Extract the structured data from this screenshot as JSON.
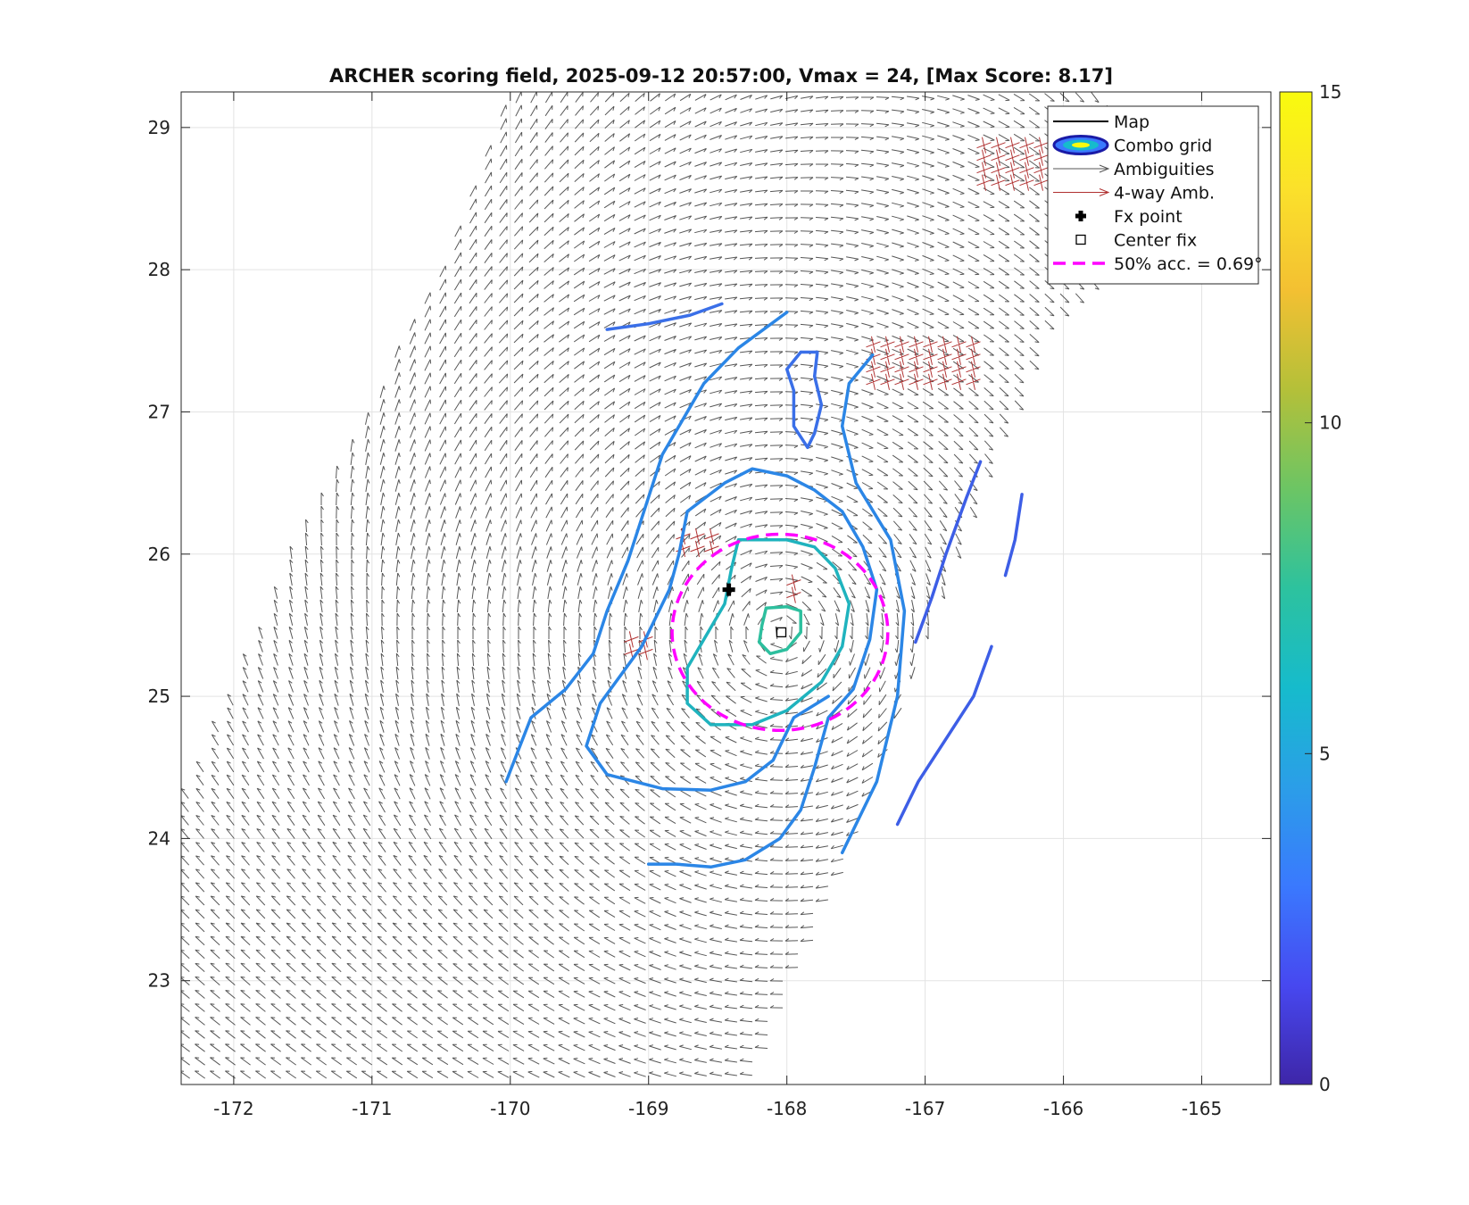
{
  "chart_data": {
    "type": "contour",
    "title": "ARCHER scoring field, 2025-09-12 20:57:00, Vmax = 24, [Max Score: 8.17]",
    "xlabel": "",
    "ylabel": "",
    "xlim": [
      -172.38,
      -164.5
    ],
    "ylim": [
      22.27,
      29.25
    ],
    "xticks": [
      -172,
      -171,
      -170,
      -169,
      -168,
      -167,
      -166,
      -165
    ],
    "yticks": [
      23,
      24,
      25,
      26,
      27,
      28,
      29
    ],
    "grid": true,
    "legend": {
      "placement": "top-right",
      "entries": [
        {
          "label": "Map",
          "style": "line",
          "color": "#000000"
        },
        {
          "label": "Combo grid",
          "style": "ellipse",
          "color": "#1a1aa6"
        },
        {
          "label": "Ambiguities",
          "style": "arrow",
          "color": "#555555"
        },
        {
          "label": "4-way Amb.",
          "style": "arrow",
          "color": "#b03030"
        },
        {
          "label": "Fx point",
          "style": "plus",
          "color": "#000000"
        },
        {
          "label": "Center fix",
          "style": "square",
          "color": "#000000"
        },
        {
          "label": "50% acc. = 0.69°",
          "style": "dashed",
          "color": "#ff00ff"
        }
      ]
    },
    "colorbar": {
      "min": 0,
      "max": 15,
      "ticks": [
        0,
        5,
        10,
        15
      ],
      "colormap": [
        "#3e26a8",
        "#4748f0",
        "#3a79fe",
        "#2b9ee8",
        "#16bbcc",
        "#2dc29e",
        "#6cc564",
        "#b4c039",
        "#f3c032",
        "#fbe02b",
        "#f9fb0e"
      ]
    },
    "fx_point": {
      "x": -168.42,
      "y": 25.75
    },
    "center_fix": {
      "x": -168.04,
      "y": 25.45
    },
    "accuracy_circle": {
      "cx": -168.05,
      "cy": 25.45,
      "rx": 0.78,
      "ry": 0.69,
      "color": "#ff00ff"
    },
    "swath": [
      [
        -170.0,
        29.25
      ],
      [
        -165.7,
        29.25
      ],
      [
        -165.0,
        28.4
      ],
      [
        -166.1,
        27.6
      ],
      [
        -167.6,
        23.8
      ],
      [
        -168.3,
        22.27
      ],
      [
        -172.38,
        22.27
      ],
      [
        -172.38,
        24.3
      ],
      [
        -171.5,
        26.2
      ],
      [
        -170.5,
        28.0
      ]
    ],
    "four_way_patches": [
      [
        -166.3,
        28.7,
        0.55,
        0.35
      ],
      [
        -167.0,
        27.3,
        0.75,
        0.35
      ],
      [
        -168.6,
        26.05,
        0.3,
        0.15
      ],
      [
        -169.05,
        25.35,
        0.15,
        0.1
      ],
      [
        -167.9,
        25.75,
        0.1,
        0.1
      ]
    ],
    "contours": [
      {
        "level": 4.6,
        "color": "#3a6fe8",
        "points": [
          [
            -169.3,
            27.58
          ],
          [
            -169.0,
            27.62
          ],
          [
            -168.7,
            27.68
          ],
          [
            -168.47,
            27.76
          ]
        ]
      },
      {
        "level": 4.8,
        "color": "#2b86e6",
        "points": [
          [
            -170.03,
            24.4
          ],
          [
            -169.95,
            24.6
          ],
          [
            -169.85,
            24.85
          ],
          [
            -169.6,
            25.05
          ],
          [
            -169.4,
            25.3
          ],
          [
            -169.3,
            25.6
          ],
          [
            -169.15,
            25.95
          ],
          [
            -169.0,
            26.4
          ],
          [
            -168.9,
            26.7
          ],
          [
            -168.75,
            26.95
          ],
          [
            -168.6,
            27.2
          ],
          [
            -168.35,
            27.45
          ],
          [
            -168.0,
            27.7
          ]
        ]
      },
      {
        "level": 4.8,
        "color": "#2b86e6",
        "points": [
          [
            -169.0,
            23.82
          ],
          [
            -168.8,
            23.82
          ],
          [
            -168.55,
            23.8
          ],
          [
            -168.3,
            23.85
          ],
          [
            -168.05,
            24.0
          ],
          [
            -167.9,
            24.2
          ],
          [
            -167.8,
            24.5
          ],
          [
            -167.7,
            24.85
          ],
          [
            -167.52,
            25.05
          ],
          [
            -167.4,
            25.4
          ],
          [
            -167.35,
            25.75
          ],
          [
            -167.45,
            26.05
          ],
          [
            -167.6,
            26.3
          ],
          [
            -167.8,
            26.45
          ],
          [
            -168.0,
            26.55
          ],
          [
            -168.25,
            26.6
          ],
          [
            -168.45,
            26.5
          ],
          [
            -168.72,
            26.3
          ],
          [
            -168.78,
            26.0
          ],
          [
            -168.85,
            25.75
          ],
          [
            -169.05,
            25.35
          ],
          [
            -169.35,
            24.95
          ],
          [
            -169.45,
            24.65
          ],
          [
            -169.3,
            24.45
          ],
          [
            -168.9,
            24.35
          ],
          [
            -168.55,
            24.34
          ],
          [
            -168.3,
            24.4
          ],
          [
            -168.1,
            24.55
          ],
          [
            -167.95,
            24.85
          ],
          [
            -167.7,
            25.0
          ]
        ]
      },
      {
        "level": 4.8,
        "color": "#2b86e6",
        "points": [
          [
            -167.6,
            23.9
          ],
          [
            -167.35,
            24.4
          ],
          [
            -167.2,
            25.0
          ],
          [
            -167.15,
            25.6
          ],
          [
            -167.25,
            26.1
          ],
          [
            -167.5,
            26.5
          ],
          [
            -167.6,
            26.9
          ],
          [
            -167.55,
            27.2
          ],
          [
            -167.38,
            27.4
          ]
        ]
      },
      {
        "level": 4.6,
        "color": "#3a6fe8",
        "points": [
          [
            -167.85,
            26.75
          ],
          [
            -167.95,
            26.9
          ],
          [
            -167.95,
            27.15
          ],
          [
            -168.0,
            27.3
          ],
          [
            -167.9,
            27.42
          ],
          [
            -167.78,
            27.42
          ],
          [
            -167.8,
            27.25
          ],
          [
            -167.75,
            27.05
          ],
          [
            -167.8,
            26.85
          ],
          [
            -167.85,
            26.75
          ]
        ]
      },
      {
        "level": 4.0,
        "color": "#3d5ee6",
        "points": [
          [
            -167.2,
            24.1
          ],
          [
            -167.05,
            24.4
          ],
          [
            -166.85,
            24.7
          ],
          [
            -166.65,
            25.0
          ],
          [
            -166.52,
            25.35
          ]
        ]
      },
      {
        "level": 4.0,
        "color": "#3d5ee6",
        "points": [
          [
            -166.6,
            26.65
          ],
          [
            -166.7,
            26.4
          ],
          [
            -166.85,
            26.0
          ],
          [
            -166.95,
            25.7
          ],
          [
            -167.07,
            25.38
          ]
        ]
      },
      {
        "level": 4.2,
        "color": "#3d5ee6",
        "points": [
          [
            -166.3,
            26.42
          ],
          [
            -166.35,
            26.1
          ],
          [
            -166.42,
            25.85
          ]
        ]
      },
      {
        "level": 7.2,
        "color": "#1fb3be",
        "points": [
          [
            -168.35,
            26.1
          ],
          [
            -168.2,
            26.1
          ],
          [
            -168.0,
            26.1
          ],
          [
            -167.8,
            26.05
          ],
          [
            -167.65,
            25.9
          ],
          [
            -167.55,
            25.65
          ],
          [
            -167.6,
            25.35
          ],
          [
            -167.75,
            25.1
          ],
          [
            -168.0,
            24.9
          ],
          [
            -168.25,
            24.8
          ],
          [
            -168.55,
            24.8
          ],
          [
            -168.72,
            24.95
          ],
          [
            -168.72,
            25.2
          ],
          [
            -168.6,
            25.4
          ],
          [
            -168.45,
            25.65
          ],
          [
            -168.4,
            25.9
          ],
          [
            -168.35,
            26.1
          ]
        ]
      },
      {
        "level": 8.0,
        "color": "#2dbf9e",
        "points": [
          [
            -168.15,
            25.62
          ],
          [
            -168.0,
            25.63
          ],
          [
            -167.9,
            25.6
          ],
          [
            -167.9,
            25.45
          ],
          [
            -168.0,
            25.33
          ],
          [
            -168.12,
            25.3
          ],
          [
            -168.2,
            25.38
          ],
          [
            -168.18,
            25.5
          ],
          [
            -168.15,
            25.62
          ]
        ]
      }
    ]
  }
}
